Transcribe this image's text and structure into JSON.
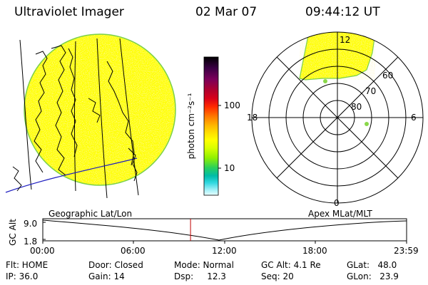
{
  "header": {
    "title": "Ultraviolet Imager",
    "date": "02 Mar 07",
    "time": "09:44:12 UT"
  },
  "colorbar": {
    "unit_label": "photon cm⁻²s⁻¹",
    "tick_100": "100",
    "tick_10": "10",
    "colors": [
      "#000000",
      "#3a0044",
      "#7a005a",
      "#b0002e",
      "#d8001a",
      "#ff2a00",
      "#ff7a00",
      "#ffbb00",
      "#ffe000",
      "#ffff00",
      "#d8ff00",
      "#90f000",
      "#2ad05a",
      "#00bca8",
      "#30d8e0",
      "#a0f0f8",
      "#e8ffff"
    ]
  },
  "polar_plot": {
    "mlt_12": "12",
    "mlt_18": "18",
    "mlt_6": "6",
    "mlt_0": "0",
    "lat_60": "60",
    "lat_70": "70",
    "lat_80": "80"
  },
  "timeline": {
    "left_label": "Geographic Lat/Lon",
    "right_label": "Apex MLat/MLT",
    "axis_label": "GC Alt",
    "y_top": "9.0",
    "y_bottom": "1.8",
    "x_ticks": [
      "00:00",
      "06:00",
      "12:00",
      "18:00",
      "23:59"
    ],
    "cursor_time_hours": 9.74
  },
  "info": {
    "flt": "Flt: HOME",
    "ip": "IP: 36.0",
    "door": "Door: Closed",
    "gain": "Gain: 14",
    "mode": "Mode: Normal",
    "dsp": "Dsp:     12.3",
    "gc_alt": "GC Alt: 4.1 Re",
    "seq": "Seq: 20",
    "glat": "GLat:   48.0",
    "glon": "GLon:   23.9"
  }
}
